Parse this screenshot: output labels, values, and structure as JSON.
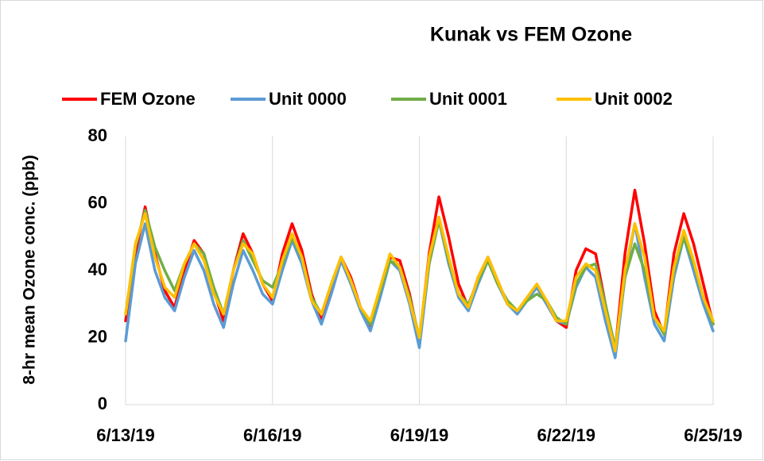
{
  "chart_data": {
    "type": "line",
    "title": "Kunak vs FEM Ozone",
    "y_label": "8-hr mean Ozone conc. (ppb)",
    "x": [
      0,
      0.2,
      0.4,
      0.6,
      0.8,
      1,
      1.2,
      1.4,
      1.6,
      1.8,
      2,
      2.2,
      2.4,
      2.6,
      2.8,
      3,
      3.2,
      3.4,
      3.6,
      3.8,
      4,
      4.2,
      4.4,
      4.6,
      4.8,
      5,
      5.2,
      5.4,
      5.6,
      5.8,
      6,
      6.2,
      6.4,
      6.6,
      6.8,
      7,
      7.2,
      7.4,
      7.6,
      7.8,
      8,
      8.2,
      8.4,
      8.6,
      8.8,
      9,
      9.2,
      9.4,
      9.6,
      9.8,
      10,
      10.2,
      10.4,
      10.6,
      10.8,
      11,
      11.2,
      11.4,
      11.6,
      11.8,
      12
    ],
    "xlim": [
      0,
      12
    ],
    "xticks": [
      {
        "value": 0,
        "label": "6/13/19"
      },
      {
        "value": 3,
        "label": "6/16/19"
      },
      {
        "value": 6,
        "label": "6/19/19"
      },
      {
        "value": 9,
        "label": "6/22/19"
      },
      {
        "value": 12,
        "label": "6/25/19"
      }
    ],
    "ylim": [
      0,
      80
    ],
    "yticks": [
      0,
      20,
      40,
      60,
      80
    ],
    "grid": "x",
    "legend": "top",
    "series": [
      {
        "name": "FEM Ozone",
        "color": "#ff0000",
        "values": [
          25,
          45,
          59,
          45,
          34,
          29,
          40,
          49,
          45,
          34,
          25,
          40,
          51,
          45,
          36,
          31,
          45,
          54,
          46,
          33,
          25,
          35,
          44,
          38,
          29,
          23,
          33,
          44,
          43,
          33,
          19,
          45,
          62,
          50,
          36,
          29,
          38,
          44,
          37,
          30,
          null,
          32,
          35,
          30,
          25,
          23,
          40,
          46.5,
          45,
          30,
          16,
          45,
          64,
          48,
          28,
          21,
          45,
          57,
          48,
          36,
          24
        ]
      },
      {
        "name": "Unit 0000",
        "color": "#5b9bd5",
        "values": [
          19,
          42,
          54,
          40,
          32,
          28,
          38,
          46,
          40,
          30,
          23,
          36,
          46,
          40,
          33,
          30,
          40,
          49,
          42,
          31,
          24,
          33,
          43,
          36,
          28,
          22,
          32,
          43,
          40,
          30,
          17,
          42,
          55,
          42,
          32,
          28,
          36,
          43,
          36,
          30,
          27,
          31,
          35,
          30,
          25,
          24,
          35,
          41,
          38,
          25,
          14,
          38,
          54,
          38,
          24,
          19,
          38,
          50,
          40,
          30,
          22
        ]
      },
      {
        "name": "Unit 0001",
        "color": "#70ad47",
        "values": [
          27,
          47,
          58,
          47,
          40,
          34,
          42,
          48,
          45,
          35,
          27,
          40,
          49,
          43,
          37,
          35,
          42,
          50,
          44,
          32,
          27,
          36,
          44,
          37,
          29,
          24,
          34,
          43,
          41,
          32,
          20,
          42,
          55,
          43,
          33,
          30,
          37,
          43,
          36,
          31,
          28,
          31,
          33,
          31,
          26,
          24,
          36,
          41,
          42,
          30,
          17,
          38,
          48,
          40,
          26,
          21,
          40,
          50,
          42,
          32,
          24
        ]
      },
      {
        "name": "Unit 0002",
        "color": "#ffc000",
        "values": [
          27,
          48,
          57,
          44,
          35,
          32,
          42,
          48,
          43,
          33,
          27,
          40,
          48,
          45,
          36,
          32,
          43,
          51,
          44,
          31,
          27,
          36,
          44,
          37,
          29,
          25,
          35,
          45,
          41,
          31,
          20,
          44,
          56,
          44,
          33,
          29,
          38,
          44,
          37,
          30,
          28,
          32,
          36,
          31,
          25,
          25,
          38,
          42,
          40,
          28,
          16,
          40,
          54,
          44,
          26,
          22,
          41,
          52,
          43,
          32,
          25
        ]
      }
    ]
  }
}
